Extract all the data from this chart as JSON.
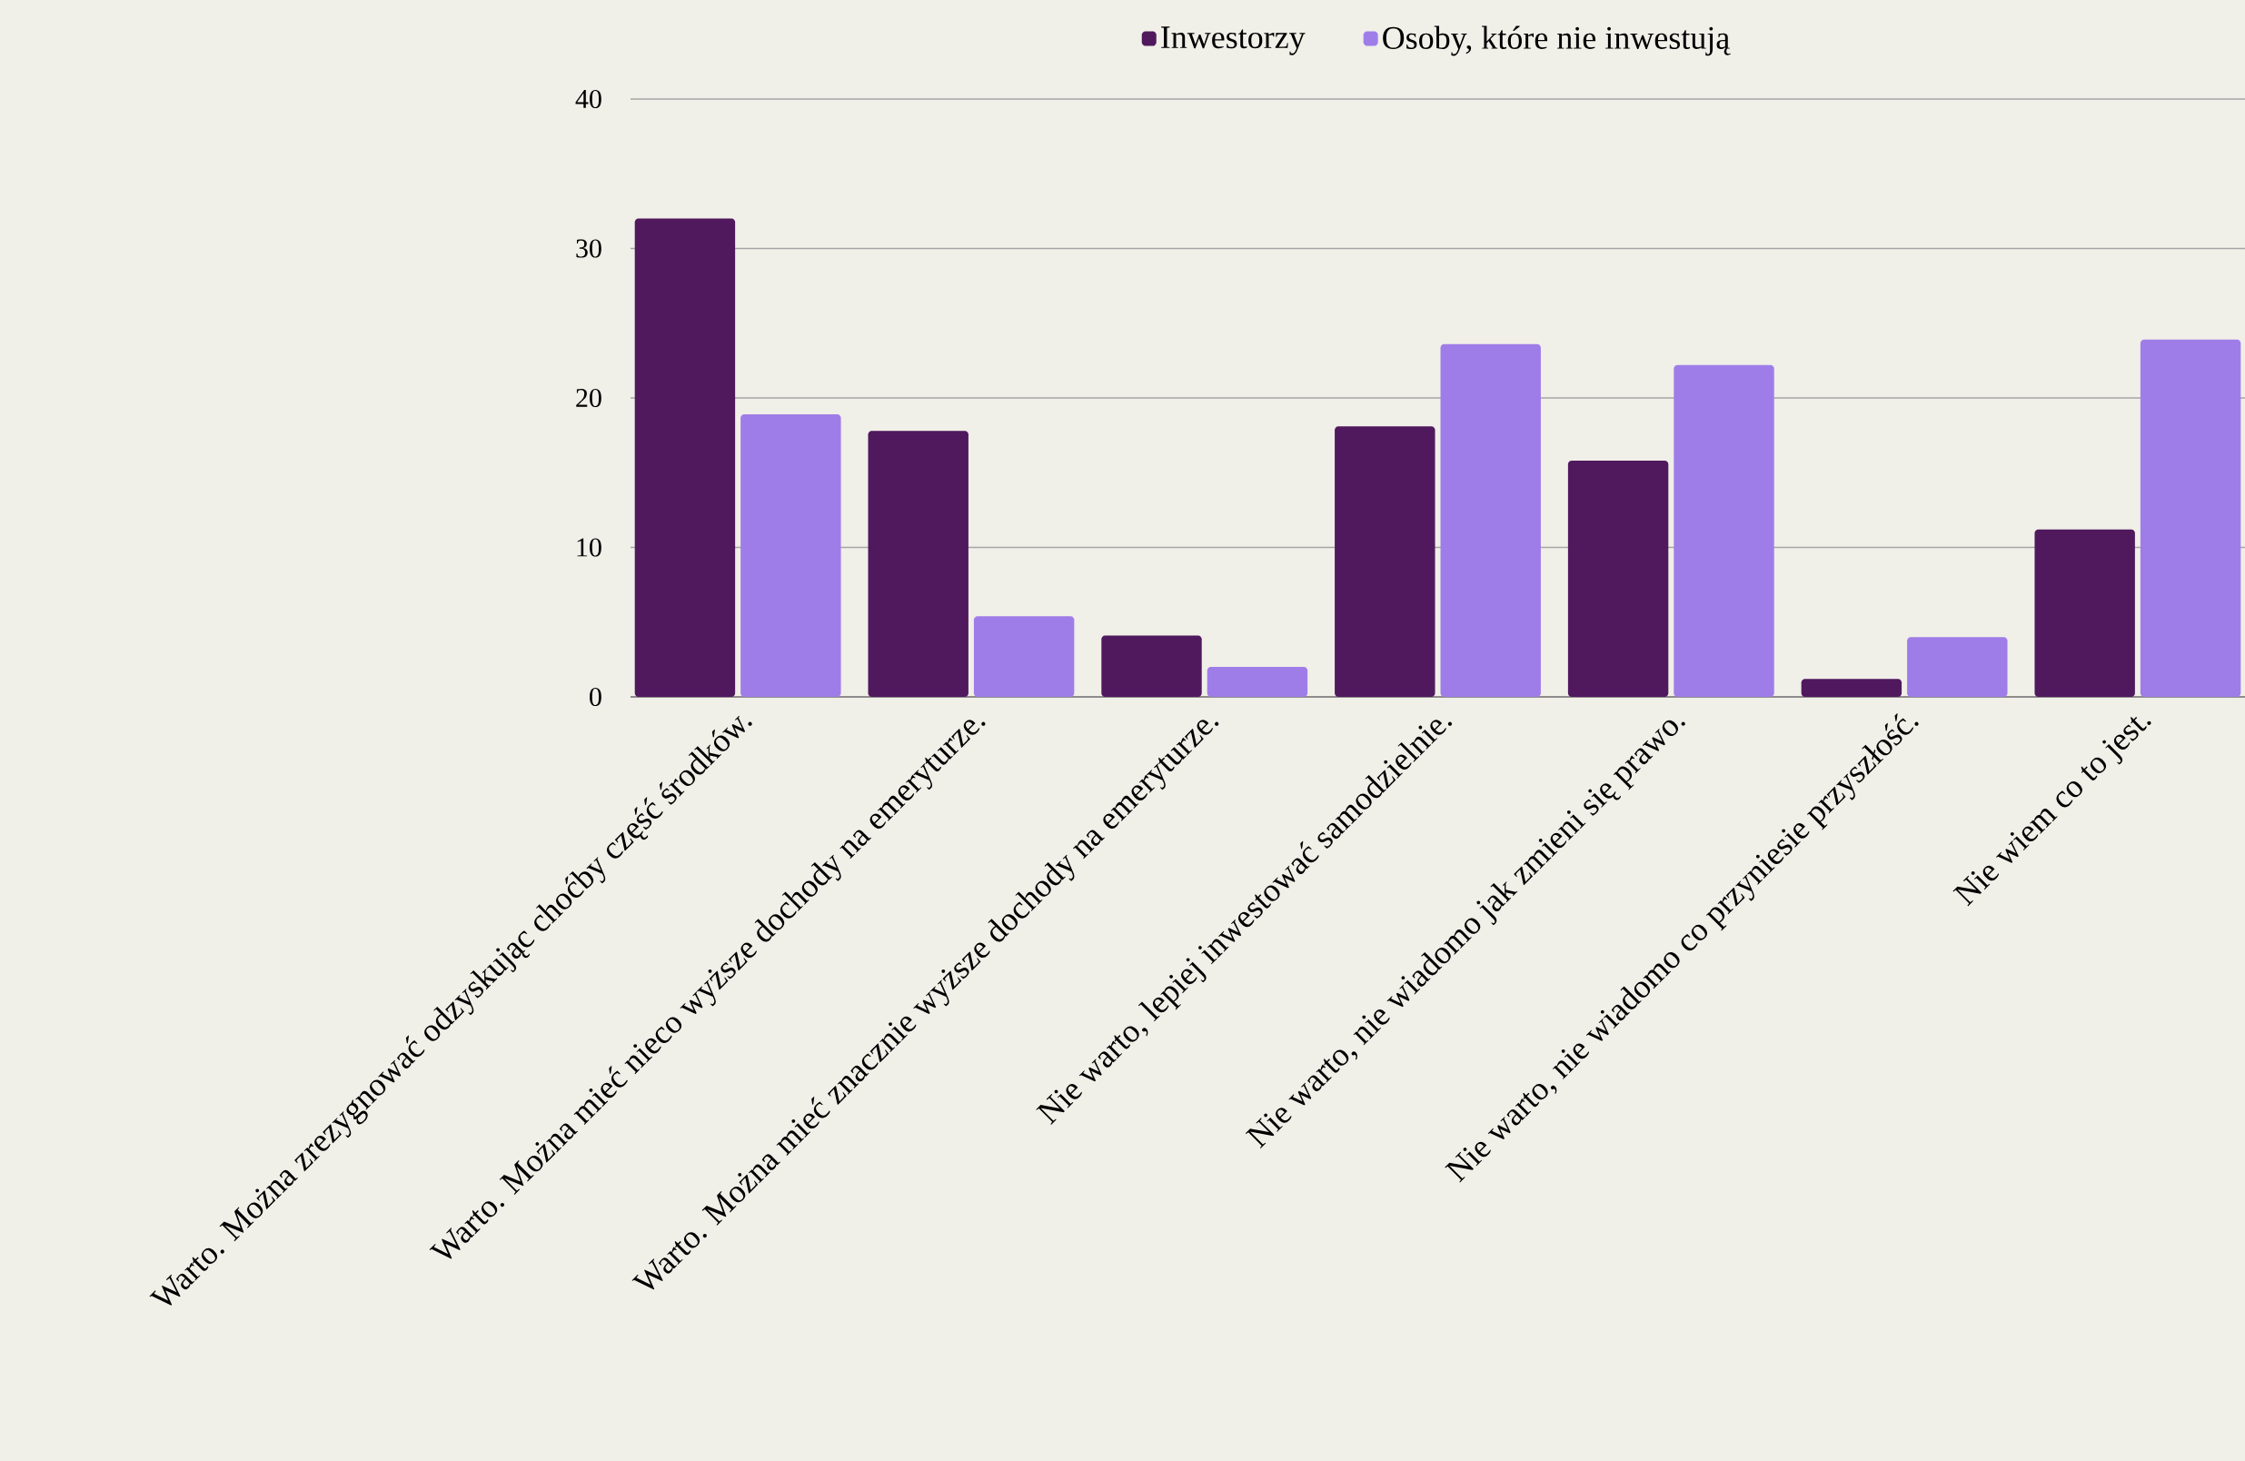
{
  "chart_data": {
    "type": "bar",
    "categories": [
      "Warto. Można zrezygnować odzyskując choćby część środków.",
      "Warto. Można mieć nieco wyższe dochody na emeryturze.",
      "Warto. Można mieć znacznie wyższe dochody na emeryturze.",
      "Nie warto, lepiej inwestować samodzielnie.",
      "Nie warto, nie wiadomo jak zmieni się prawo.",
      "Nie warto, nie wiadomo co przyniesie przyszłość.",
      "Nie wiem co to jest."
    ],
    "series": [
      {
        "name": "Inwestorzy",
        "color": "#50195e",
        "values": [
          32,
          17.8,
          4.1,
          18.1,
          15.8,
          1.2,
          11.2
        ]
      },
      {
        "name": "Osoby, które nie inwestują",
        "color": "#9f7de8",
        "values": [
          18.9,
          5.4,
          2.0,
          23.6,
          22.2,
          4.0,
          23.9
        ]
      }
    ],
    "ylim": [
      0,
      40
    ],
    "yticks": [
      0,
      10,
      20,
      30,
      40
    ],
    "grid": "y",
    "legend": "top"
  }
}
